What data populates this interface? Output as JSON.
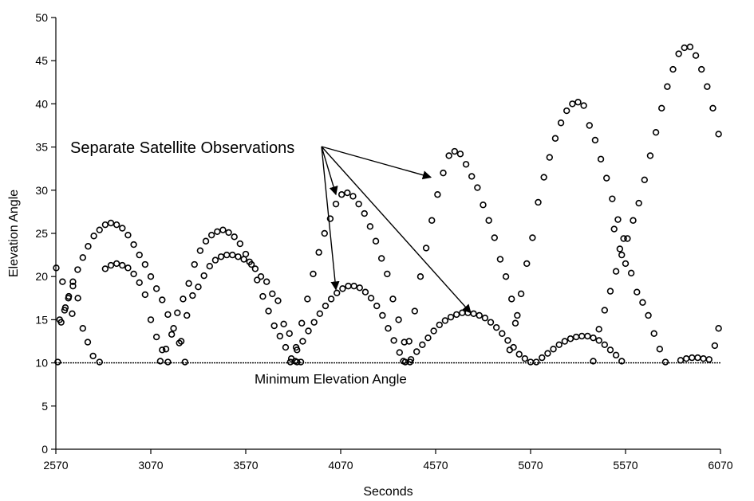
{
  "chart_data": {
    "type": "scatter",
    "title": "",
    "xlabel": "Seconds",
    "ylabel": "Elevation Angle",
    "xlim": [
      2570,
      6070
    ],
    "ylim": [
      0,
      50
    ],
    "xticks": [
      2570,
      3070,
      3570,
      4070,
      4570,
      5070,
      5570,
      6070
    ],
    "yticks": [
      0,
      5,
      10,
      15,
      20,
      25,
      30,
      35,
      40,
      45,
      50
    ],
    "grid": false,
    "legend": "none",
    "marker": "open-circle",
    "threshold": {
      "value": 10,
      "label": "Minimum Elevation Angle"
    },
    "annotation": {
      "text": "Separate Satellite Observations",
      "targets": [
        [
          4570,
          31.5
        ],
        [
          4070,
          29.5
        ],
        [
          4070,
          18.5
        ],
        [
          4780,
          15.8
        ]
      ]
    },
    "series": [
      {
        "x": [
          2572,
          2590,
          2605,
          2620,
          2638,
          2656
        ],
        "values": [
          21,
          15,
          19.4,
          16.4,
          17.7,
          15.7
        ]
      },
      {
        "x": [
          2580,
          2598,
          2616,
          2636,
          2660,
          2685,
          2712,
          2740,
          2770,
          2800,
          2830,
          2860,
          2890,
          2920,
          2950,
          2980,
          3010,
          3040,
          3070,
          3100,
          3130,
          3160,
          3190,
          3220,
          3250
        ],
        "values": [
          10.1,
          14.7,
          16.1,
          17.5,
          19.4,
          20.8,
          22.2,
          23.5,
          24.7,
          25.4,
          26,
          26.2,
          26,
          25.6,
          24.8,
          23.7,
          22.5,
          21.4,
          20,
          18.6,
          17.3,
          15.6,
          14,
          12.3,
          10.1
        ]
      },
      {
        "x": [
          2660,
          2686,
          2712,
          2738,
          2766,
          2800,
          2830,
          2860,
          2890,
          2920,
          2950,
          2980,
          3010,
          3040,
          3070,
          3100,
          3130,
          3160
        ],
        "values": [
          18.9,
          17.5,
          14,
          12.4,
          10.8,
          10.1,
          20.9,
          21.3,
          21.5,
          21.3,
          21,
          20.3,
          19.3,
          17.9,
          15,
          13,
          11.5,
          10.1
        ]
      },
      {
        "x": [
          3120,
          3150,
          3180,
          3210,
          3240,
          3270,
          3300,
          3330,
          3360,
          3390,
          3420,
          3450,
          3480,
          3510,
          3540,
          3570,
          3600,
          3630,
          3660,
          3690,
          3720,
          3750,
          3780,
          3810,
          3840
        ],
        "values": [
          10.2,
          11.6,
          13.3,
          15.8,
          17.4,
          19.2,
          21.4,
          23,
          24.1,
          24.8,
          25.2,
          25.4,
          25.1,
          24.6,
          23.8,
          22.6,
          21.4,
          19.6,
          17.7,
          16,
          14.3,
          13.1,
          11.8,
          10.5,
          10.1
        ]
      },
      {
        "x": [
          3230,
          3260,
          3290,
          3320,
          3350,
          3380,
          3410,
          3440,
          3470,
          3500,
          3530,
          3560,
          3590,
          3620,
          3650,
          3680,
          3710,
          3740,
          3770,
          3800,
          3830,
          3860
        ],
        "values": [
          12.5,
          15.5,
          17.8,
          18.8,
          20.1,
          21.2,
          21.9,
          22.3,
          22.5,
          22.5,
          22.3,
          22,
          21.7,
          20.9,
          20,
          19.4,
          18,
          17.2,
          14.5,
          13.4,
          10.2,
          10.1
        ]
      },
      {
        "x": [
          3805,
          3835,
          3865,
          3895,
          3925,
          3955,
          3985,
          4015,
          4045,
          4075,
          4105,
          4135,
          4165,
          4195,
          4225,
          4255,
          4285,
          4315,
          4345,
          4375,
          4405,
          4435
        ],
        "values": [
          10.1,
          11.8,
          14.6,
          17.4,
          20.3,
          22.8,
          25,
          26.7,
          28.4,
          29.5,
          29.7,
          29.3,
          28.4,
          27.3,
          25.8,
          24.1,
          22.1,
          20.3,
          17.4,
          15,
          12.4,
          10.1
        ]
      },
      {
        "x": [
          3840,
          3870,
          3900,
          3930,
          3960,
          3990,
          4020,
          4050,
          4080,
          4110,
          4140,
          4170,
          4200,
          4230,
          4260,
          4290,
          4320,
          4350,
          4380,
          4410
        ],
        "values": [
          11.5,
          12.5,
          13.7,
          14.7,
          15.7,
          16.6,
          17.4,
          18.1,
          18.6,
          18.9,
          18.9,
          18.7,
          18.2,
          17.5,
          16.6,
          15.5,
          14,
          12.6,
          11.2,
          10.1
        ]
      },
      {
        "x": [
          4400,
          4430,
          4460,
          4490,
          4520,
          4550,
          4580,
          4610,
          4640,
          4670,
          4700,
          4730,
          4760,
          4790,
          4820,
          4850,
          4880,
          4910,
          4940,
          4970,
          5000
        ],
        "values": [
          10.2,
          12.5,
          16,
          20,
          23.3,
          26.5,
          29.5,
          32,
          34,
          34.5,
          34.2,
          33,
          31.6,
          30.3,
          28.3,
          26.5,
          24.5,
          22,
          20,
          17.4,
          15.5
        ]
      },
      {
        "x": [
          4440,
          4470,
          4500,
          4530,
          4560,
          4590,
          4620,
          4650,
          4680,
          4710,
          4740,
          4770,
          4800,
          4830,
          4860,
          4890,
          4920,
          4950,
          4980,
          5010,
          5040,
          5070
        ],
        "values": [
          10.4,
          11.3,
          12.1,
          12.9,
          13.7,
          14.4,
          14.9,
          15.3,
          15.6,
          15.8,
          15.8,
          15.7,
          15.5,
          15.2,
          14.7,
          14.1,
          13.4,
          12.6,
          11.8,
          11,
          10.5,
          10.1
        ]
      },
      {
        "x": [
          4960,
          4990,
          5020,
          5050,
          5080,
          5110,
          5140,
          5170,
          5200,
          5230,
          5260,
          5290,
          5320,
          5350,
          5380,
          5410,
          5440,
          5470,
          5500,
          5530,
          5560
        ],
        "values": [
          11.5,
          14.6,
          18,
          21.5,
          24.5,
          28.6,
          31.5,
          33.8,
          36,
          37.8,
          39.2,
          40,
          40.2,
          39.8,
          37.5,
          35.8,
          33.6,
          31.4,
          29,
          26.6,
          24.4
        ]
      },
      {
        "x": [
          5100,
          5130,
          5160,
          5190,
          5220,
          5250,
          5280,
          5310,
          5340,
          5370,
          5400,
          5430,
          5460,
          5490,
          5520,
          5550
        ],
        "values": [
          10.1,
          10.6,
          11.1,
          11.6,
          12.1,
          12.5,
          12.8,
          13,
          13.1,
          13.1,
          12.9,
          12.6,
          12.1,
          11.5,
          10.9,
          10.2
        ]
      },
      {
        "x": [
          5400,
          5430,
          5460,
          5490,
          5520,
          5550,
          5580,
          5610,
          5640,
          5670,
          5700,
          5730,
          5760,
          5790,
          5820,
          5850,
          5880,
          5910,
          5940,
          5970,
          6000,
          6030,
          6060
        ],
        "values": [
          10.2,
          13.9,
          16.1,
          18.3,
          20.6,
          22.5,
          24.4,
          26.5,
          28.5,
          31.2,
          34,
          36.7,
          39.5,
          42,
          44,
          45.8,
          46.5,
          46.6,
          45.6,
          44,
          42,
          39.5,
          36.5
        ]
      },
      {
        "x": [
          5510,
          5540,
          5570,
          5600,
          5630,
          5660,
          5690,
          5720,
          5750,
          5780
        ],
        "values": [
          25.5,
          23.2,
          21.5,
          20.4,
          18.2,
          17,
          15.5,
          13.4,
          11.6,
          10.1
        ]
      },
      {
        "x": [
          5860,
          5890,
          5920,
          5950,
          5980,
          6010,
          6040,
          6060
        ],
        "values": [
          10.3,
          10.5,
          10.6,
          10.6,
          10.5,
          10.4,
          12,
          14
        ]
      }
    ]
  }
}
